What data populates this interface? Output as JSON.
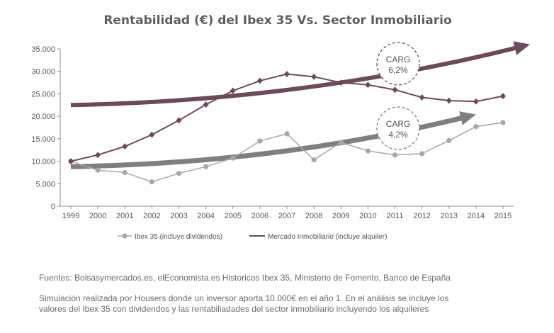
{
  "colors": {
    "ibex": "#a7a7a7",
    "inmobiliario": "#6d4a5a",
    "ibex_trend": "#7f7f7f",
    "inmobiliario_trend": "#6d4a5a",
    "axis": "#8c8c8c",
    "text": "#555555"
  },
  "chart_data": {
    "type": "line",
    "title": "Rentabilidad (€) del Ibex 35 Vs. Sector Inmobiliario",
    "xlabel": "",
    "ylabel": "",
    "ylim": [
      0,
      35000
    ],
    "ytick_values": [
      0,
      5000,
      10000,
      15000,
      20000,
      25000,
      30000,
      35000
    ],
    "ytick_labels": [
      "0",
      "5.000",
      "10.000",
      "15.000",
      "20.000",
      "25.000",
      "30.000",
      "35.000"
    ],
    "categories": [
      "1999",
      "2000",
      "2001",
      "2002",
      "2003",
      "2004",
      "2005",
      "2006",
      "2007",
      "2008",
      "2009",
      "2010",
      "2011",
      "2012",
      "2013",
      "2014",
      "2015"
    ],
    "series": [
      {
        "name": "Ibex 35 (incluye dividendos)",
        "marker": "circle",
        "values": [
          10000,
          8000,
          7500,
          5400,
          7300,
          8800,
          10700,
          14500,
          16100,
          10300,
          14200,
          12300,
          11400,
          11700,
          14600,
          17700,
          18600
        ]
      },
      {
        "name": "Mercado Inmobiliario (incluye alquiler)",
        "marker": "diamond",
        "values": [
          10000,
          11400,
          13300,
          15900,
          19100,
          22600,
          25700,
          27900,
          29400,
          28800,
          27500,
          27000,
          25900,
          24200,
          23500,
          23300,
          24500
        ]
      }
    ],
    "trends": [
      {
        "name": "CARG inmobiliario",
        "label_line1": "CARG",
        "label_line2": "6,2%",
        "start": {
          "x": 1999,
          "y": 22500
        },
        "end": {
          "x": 2016,
          "y": 36000
        },
        "curvature": 0.16
      },
      {
        "name": "CARG Ibex",
        "label_line1": "CARG",
        "label_line2": "4,2%",
        "start": {
          "x": 1999,
          "y": 8800
        },
        "end": {
          "x": 2014,
          "y": 20400
        },
        "curvature": 0.16
      }
    ]
  },
  "footer": {
    "sources": "Fuentes: Bolsasymercados.es, elEconomista.es Historicos Ibex 35, Ministerio de Fomento, Banco de España",
    "simulation_line1": "Simulación realizada por Housers donde un inversor aporta 10.000€ en el año 1. En el análisis se incluye los",
    "simulation_line2": "valores del Ibex 35 con dividendos y las rentabiliadades del sector inmobiliario incluyendo los alquileres"
  }
}
